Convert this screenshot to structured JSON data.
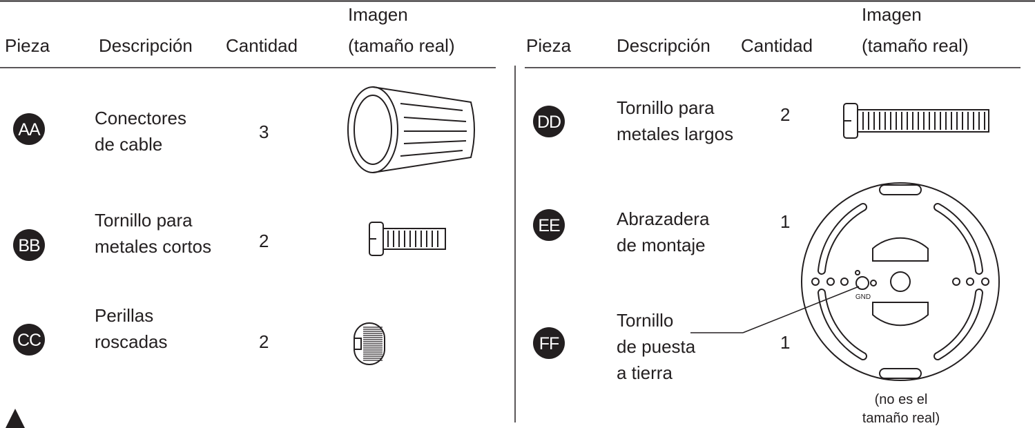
{
  "header": {
    "part": "Pieza",
    "description": "Descripción",
    "quantity": "Cantidad",
    "image": [
      "Imagen",
      "(tamaño real)"
    ]
  },
  "left_table": {
    "rows": [
      {
        "part": "AA",
        "description": [
          "Conectores",
          "de cable"
        ],
        "quantity": "3"
      },
      {
        "part": "BB",
        "description": [
          "Tornillo para",
          "metales cortos"
        ],
        "quantity": "2"
      },
      {
        "part": "CC",
        "description": [
          "Perillas",
          "roscadas"
        ],
        "quantity": "2"
      }
    ]
  },
  "right_table": {
    "rows": [
      {
        "part": "DD",
        "description": [
          "Tornillo para",
          "metales largos"
        ],
        "quantity": "2"
      },
      {
        "part": "EE",
        "description": [
          "Abrazadera",
          "de montaje"
        ],
        "quantity": "1"
      },
      {
        "part": "FF",
        "description": [
          "Tornillo",
          "de puesta",
          "a tierra"
        ],
        "quantity": "1"
      }
    ]
  },
  "bracket": {
    "ground_label": "GND",
    "note": [
      "(no es el",
      "tamaño real)"
    ]
  }
}
